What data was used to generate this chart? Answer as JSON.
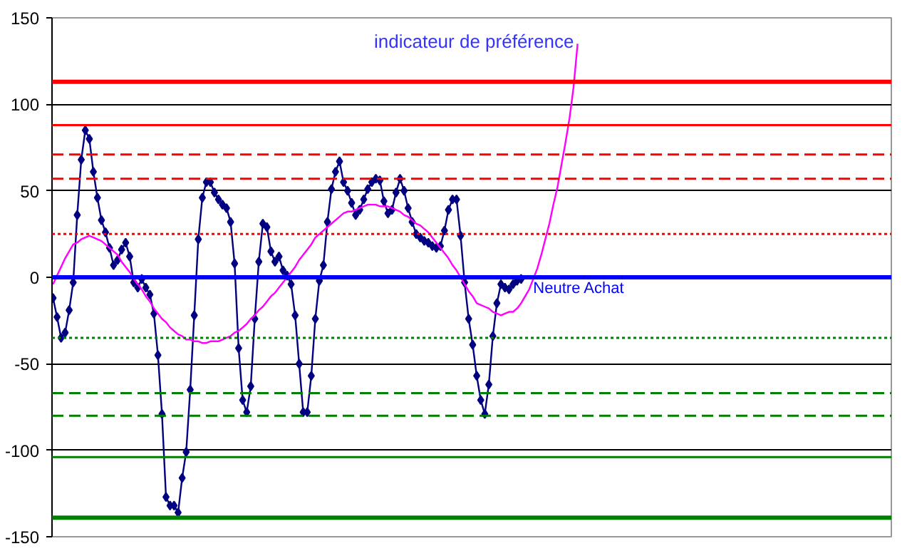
{
  "chart_data": {
    "type": "line",
    "categories": [
      null,
      null,
      null,
      null,
      null,
      null,
      null,
      null,
      null,
      null,
      null,
      null,
      null,
      null,
      null,
      null,
      null,
      null,
      null,
      null,
      null,
      null,
      null,
      null,
      null,
      null,
      null,
      null,
      null,
      null,
      null,
      null,
      null,
      null,
      null,
      null,
      null,
      null,
      null,
      null,
      null,
      null,
      null,
      null,
      null,
      null,
      null,
      null,
      null,
      null,
      null,
      null,
      null,
      null,
      null,
      null,
      null,
      null,
      null,
      null,
      null,
      null,
      null,
      null,
      null,
      null,
      null,
      null,
      null,
      null,
      null,
      null,
      null,
      null,
      null,
      null,
      null,
      null,
      null,
      null,
      null,
      null,
      null,
      null,
      null,
      null,
      null,
      null,
      null,
      null,
      null,
      null,
      null,
      null,
      null,
      null,
      null,
      null,
      null,
      null,
      null,
      null,
      null,
      null,
      null,
      null,
      null,
      null,
      null,
      null,
      null,
      null,
      null,
      null,
      null,
      null,
      null,
      null,
      null,
      null,
      null,
      null,
      null,
      null,
      null,
      null,
      null,
      null,
      null,
      null,
      null,
      null,
      null,
      null,
      null,
      null,
      null,
      null,
      null,
      null,
      null,
      null,
      null,
      null,
      null,
      null,
      null,
      null,
      null,
      null,
      null,
      null,
      null,
      null,
      null,
      null,
      null,
      null,
      null,
      null,
      null,
      null,
      null,
      null,
      null,
      null,
      null,
      null,
      null,
      null,
      null,
      null,
      null,
      null,
      null,
      null,
      null,
      null,
      null,
      null,
      null,
      null,
      null,
      null,
      null,
      null,
      null,
      null,
      null,
      null,
      null,
      null,
      null,
      null,
      null,
      null,
      null,
      null,
      null,
      null,
      null,
      null,
      null,
      null,
      null,
      null,
      null,
      null
    ],
    "ylim": [
      -150,
      150
    ],
    "yticks": [
      -150,
      -100,
      -50,
      0,
      50,
      100,
      150
    ],
    "grid": "y",
    "tick_labels": "y",
    "annotations": [
      "indicateur de préférence"
    ],
    "series": [
      {
        "color": "#000080",
        "marker": "diamond",
        "values": [
          -12,
          -23,
          -35,
          -32,
          -19,
          -3,
          36,
          68,
          85,
          80,
          61,
          46,
          33,
          26,
          17,
          7,
          10,
          16,
          20,
          12,
          -3,
          -6,
          -1,
          -6,
          -10,
          -21,
          -45,
          -79,
          -127,
          -132,
          -132,
          -136,
          -116,
          -101,
          -65,
          -22,
          22,
          46,
          55,
          55,
          49,
          45,
          42,
          40,
          32,
          8,
          -41,
          -71,
          -78,
          -63,
          -24,
          9,
          31,
          29,
          15,
          9,
          12,
          4,
          1,
          -4,
          -22,
          -50,
          -78,
          -78,
          -57,
          -24,
          -2,
          7,
          32,
          51,
          61,
          67,
          55,
          50,
          43,
          36,
          39,
          45,
          51,
          55,
          57,
          56,
          44,
          37,
          39,
          49,
          57,
          50,
          40,
          32,
          25,
          23,
          21,
          20,
          18,
          17,
          18,
          27,
          39,
          45,
          45,
          24,
          -3,
          -24,
          -39,
          -57,
          -71,
          -79,
          -62,
          -34,
          -15,
          -4,
          -6,
          -7,
          -4,
          -2,
          -1,
          null,
          null,
          null,
          null,
          null,
          null,
          null,
          null,
          null,
          null,
          null,
          null,
          null,
          null,
          null,
          null,
          null,
          null,
          null,
          null,
          null,
          null,
          null,
          null,
          null,
          null,
          null,
          null,
          null,
          null,
          null,
          null,
          null,
          null,
          null,
          null,
          null,
          null,
          null,
          null,
          null,
          null,
          null,
          null,
          null,
          null,
          null,
          null,
          null,
          null,
          null,
          null,
          null,
          null,
          null,
          null,
          null,
          null,
          null,
          null,
          null,
          null,
          null,
          null,
          null,
          null,
          null,
          null,
          null,
          null,
          null,
          null,
          null,
          null,
          null,
          null,
          null,
          null,
          null,
          null,
          null,
          null,
          null,
          null,
          null,
          null,
          null,
          null,
          null,
          null,
          null
        ]
      },
      {
        "color": "#ff00ff",
        "marker": "none",
        "values": [
          -4,
          1,
          6,
          11,
          15,
          19,
          20,
          22,
          23,
          24,
          23,
          22,
          21,
          19,
          17,
          15,
          13,
          9,
          6,
          3,
          -1,
          -4,
          -7,
          -11,
          -14,
          -18,
          -21,
          -24,
          -26,
          -29,
          -31,
          -33,
          -34,
          -36,
          -36,
          -37,
          -37,
          -38,
          -38,
          -37,
          -37,
          -37,
          -36,
          -35,
          -34,
          -32,
          -31,
          -29,
          -27,
          -24,
          -22,
          -19,
          -17,
          -14,
          -11,
          -9,
          -6,
          -3,
          0,
          3,
          6,
          10,
          13,
          16,
          19,
          23,
          25,
          27,
          29,
          31,
          33,
          35,
          37,
          38,
          38,
          39,
          40,
          41,
          42,
          42,
          42,
          41,
          41,
          41,
          40,
          39,
          38,
          36,
          35,
          33,
          31,
          30,
          28,
          26,
          23,
          20,
          17,
          14,
          11,
          7,
          4,
          0,
          -4,
          -8,
          -11,
          -15,
          -16,
          -17,
          -18,
          -20,
          -21,
          -22,
          -21,
          -20,
          -20,
          -18,
          -15,
          -11,
          -7,
          -1,
          5,
          13,
          22,
          31,
          42,
          52,
          65,
          78,
          92,
          110,
          135,
          null,
          null,
          null,
          null,
          null,
          null,
          null,
          null,
          null,
          null,
          null,
          null,
          null,
          null,
          null,
          null,
          null,
          null,
          null,
          null,
          null,
          null,
          null,
          null,
          null,
          null,
          null,
          null,
          null,
          null,
          null,
          null,
          null,
          null,
          null,
          null,
          null,
          null,
          null,
          null,
          null,
          null,
          null,
          null,
          null,
          null,
          null,
          null,
          null,
          null,
          null,
          null,
          null,
          null,
          null,
          null,
          null,
          null,
          null,
          null,
          null,
          null,
          null,
          null,
          null,
          null,
          null,
          null,
          null,
          null,
          null,
          null,
          null,
          null,
          null,
          null,
          null
        ]
      }
    ],
    "ref_lines": [
      {
        "axis": "y",
        "value": 113,
        "color": "#ff0000",
        "line_style": "solid"
      },
      {
        "axis": "y",
        "value": 88,
        "color": "#ff0000",
        "line_style": "solid"
      },
      {
        "axis": "y",
        "value": 71,
        "color": "#ff0000",
        "line_style": "dashed"
      },
      {
        "axis": "y",
        "value": 57,
        "color": "#ff0000",
        "line_style": "dashed"
      },
      {
        "axis": "y",
        "value": 25,
        "color": "#ff0000",
        "line_style": "dotted"
      },
      {
        "axis": "y",
        "value": 0,
        "color": "#0000ff",
        "line_style": "solid",
        "label": "Neutre Achat"
      },
      {
        "axis": "y",
        "value": -35,
        "color": "#008000",
        "line_style": "dotted"
      },
      {
        "axis": "y",
        "value": -67,
        "color": "#008000",
        "line_style": "dashed"
      },
      {
        "axis": "y",
        "value": -80,
        "color": "#008000",
        "line_style": "dashed"
      },
      {
        "axis": "y",
        "value": -104,
        "color": "#008000",
        "line_style": "solid"
      },
      {
        "axis": "y",
        "value": -139,
        "color": "#008000",
        "line_style": "solid"
      }
    ]
  }
}
